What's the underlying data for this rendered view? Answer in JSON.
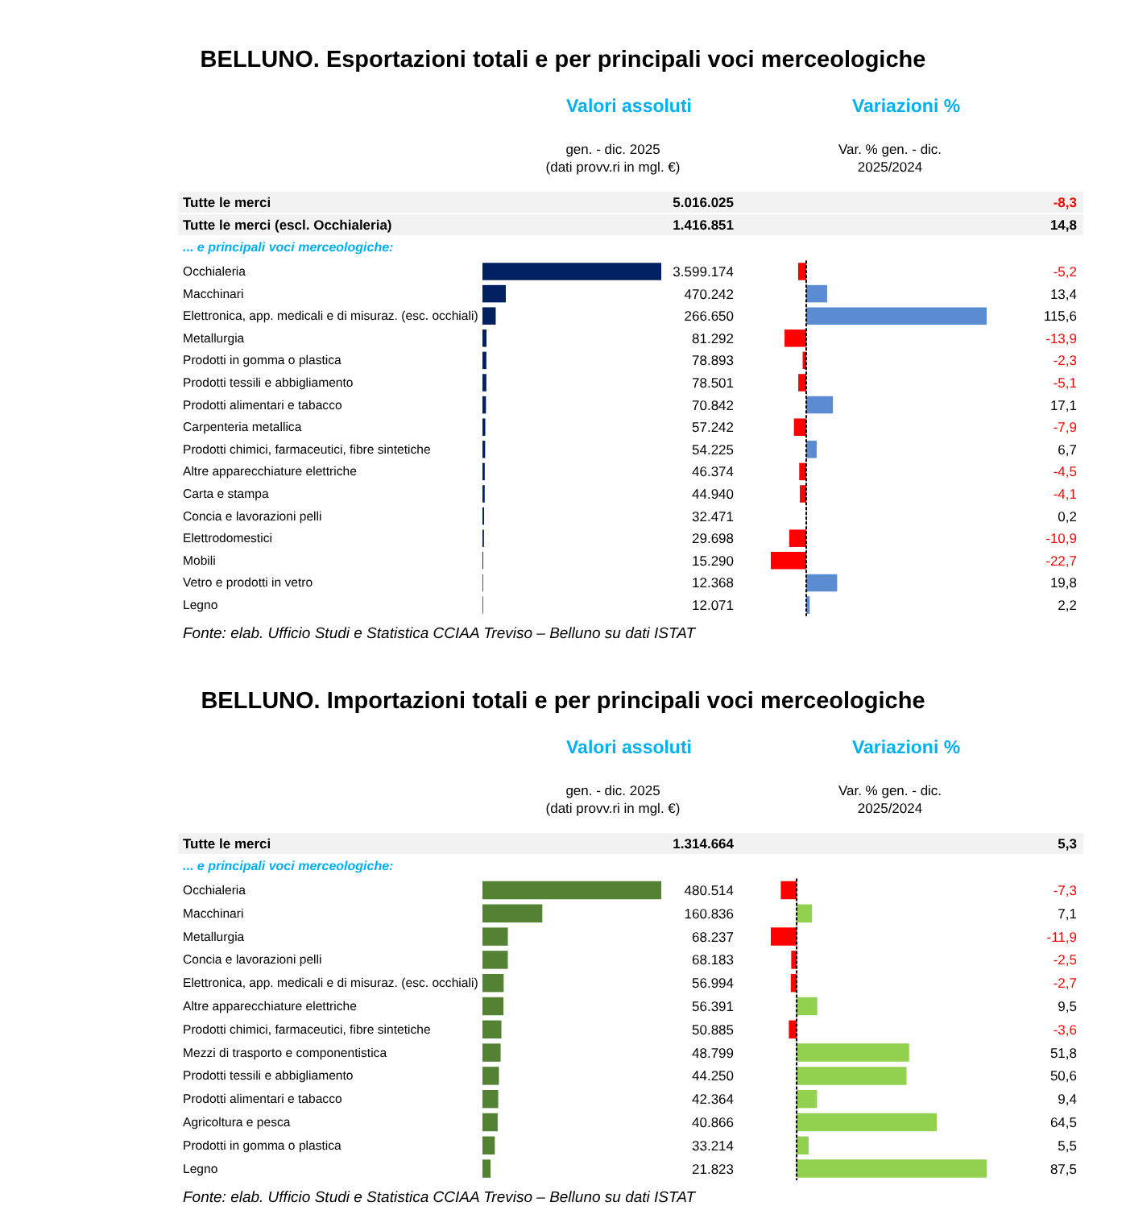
{
  "chart_data": [
    {
      "type": "bar",
      "orientation": "horizontal",
      "title": "BELLUNO. Esportazioni totali e per principali voci merceologiche",
      "subtitle": "Valori assoluti",
      "categories": [
        "Occhialeria",
        "Macchinari",
        "Elettronica, app. medicali e di misuraz. (esc. occhiali)",
        "Metallurgia",
        "Prodotti in gomma o plastica",
        "Prodotti tessili e abbigliamento",
        "Prodotti alimentari e tabacco",
        "Carpenteria metallica",
        "Prodotti chimici, farmaceutici, fibre sintetiche",
        "Altre apparecchiature elettriche",
        "Carta e stampa",
        "Concia e lavorazioni pelli",
        "Elettrodomestici",
        "Mobili",
        "Vetro e prodotti in vetro",
        "Legno"
      ],
      "values": [
        3599174,
        470242,
        266650,
        81292,
        78893,
        78501,
        70842,
        57242,
        54225,
        46374,
        44940,
        32471,
        29698,
        15290,
        12368,
        12071
      ],
      "value_labels": [
        "3.599.174",
        "470.242",
        "266.650",
        "81.292",
        "78.893",
        "78.501",
        "70.842",
        "57.242",
        "54.225",
        "46.374",
        "44.940",
        "32.471",
        "29.698",
        "15.290",
        "12.368",
        "12.071"
      ],
      "color": "#002060",
      "tick_labels": "y",
      "annotations": [
        "gen. - dic. 2025",
        "(dati provv.ri in mgl. €)",
        "Tutte le merci",
        "5.016.025",
        "Tutte le merci (escl. Occhialeria)",
        "1.416.851",
        "... e principali voci merceologiche:",
        "Fonte: elab. Ufficio Studi e Statistica CCIAA Treviso – Belluno su dati ISTAT"
      ]
    },
    {
      "type": "bar",
      "orientation": "horizontal",
      "subtitle": "Variazioni %",
      "categories": [
        null,
        null,
        null,
        null,
        null,
        null,
        null,
        null,
        null,
        null,
        null,
        null,
        null,
        null,
        null,
        null
      ],
      "values": [
        -5.2,
        13.4,
        115.6,
        -13.9,
        -2.3,
        -5.1,
        17.1,
        -7.9,
        6.7,
        -4.5,
        -4.1,
        0.2,
        -10.9,
        -22.7,
        19.8,
        2.2
      ],
      "value_labels": [
        "-5,2",
        "13,4",
        "115,6",
        "-13,9",
        "-2,3",
        "-5,1",
        "17,1",
        "-7,9",
        "6,7",
        "-4,5",
        "-4,1",
        "0,2",
        "-10,9",
        "-22,7",
        "19,8",
        "2,2"
      ],
      "colors": [
        "#ff0000",
        "#5b8bd0",
        "#5b8bd0",
        "#ff0000",
        "#ff0000",
        "#ff0000",
        "#5b8bd0",
        "#ff0000",
        "#5b8bd0",
        "#ff0000",
        "#ff0000",
        "#5b8bd0",
        "#ff0000",
        "#ff0000",
        "#5b8bd0",
        "#5b8bd0"
      ],
      "tick_labels": false,
      "ref_lines": [
        {
          "axis": "x",
          "value": 0,
          "line_style": "dashed",
          "color": "#000000"
        }
      ],
      "annotations": [
        "Var. % gen. - dic.",
        "2025/2024",
        "-8,3",
        "14,8"
      ]
    },
    {
      "type": "bar",
      "orientation": "horizontal",
      "title": "BELLUNO. Importazioni totali e per principali voci merceologiche",
      "subtitle": "Valori assoluti",
      "categories": [
        "Occhialeria",
        "Macchinari",
        "Metallurgia",
        "Concia e lavorazioni pelli",
        "Elettronica, app. medicali e di misuraz. (esc. occhiali)",
        "Altre apparecchiature elettriche",
        "Prodotti chimici, farmaceutici, fibre sintetiche",
        "Mezzi di trasporto e componentistica",
        "Prodotti tessili e abbigliamento",
        "Prodotti alimentari e tabacco",
        "Agricoltura e pesca",
        "Prodotti in gomma o plastica",
        "Legno"
      ],
      "values": [
        480514,
        160836,
        68237,
        68183,
        56994,
        56391,
        50885,
        48799,
        44250,
        42364,
        40866,
        33214,
        21823
      ],
      "value_labels": [
        "480.514",
        "160.836",
        "68.237",
        "68.183",
        "56.994",
        "56.391",
        "50.885",
        "48.799",
        "44.250",
        "42.364",
        "40.866",
        "33.214",
        "21.823"
      ],
      "color": "#548235",
      "tick_labels": "y",
      "annotations": [
        "gen. - dic. 2025",
        "(dati provv.ri in mgl. €)",
        "Tutte le merci",
        "1.314.664",
        "... e principali voci merceologiche:",
        "Fonte: elab. Ufficio Studi e Statistica CCIAA Treviso – Belluno su dati ISTAT"
      ]
    },
    {
      "type": "bar",
      "orientation": "horizontal",
      "subtitle": "Variazioni %",
      "categories": [
        null,
        null,
        null,
        null,
        null,
        null,
        null,
        null,
        null,
        null,
        null,
        null,
        null
      ],
      "values": [
        -7.3,
        7.1,
        -11.9,
        -2.5,
        -2.7,
        9.5,
        -3.6,
        51.8,
        50.6,
        9.4,
        64.5,
        5.5,
        87.5
      ],
      "value_labels": [
        "-7,3",
        "7,1",
        "-11,9",
        "-2,5",
        "-2,7",
        "9,5",
        "-3,6",
        "51,8",
        "50,6",
        "9,4",
        "64,5",
        "5,5",
        "87,5"
      ],
      "colors": [
        "#ff0000",
        "#92d050",
        "#ff0000",
        "#ff0000",
        "#ff0000",
        "#92d050",
        "#ff0000",
        "#92d050",
        "#92d050",
        "#92d050",
        "#92d050",
        "#92d050",
        "#92d050"
      ],
      "tick_labels": false,
      "ref_lines": [
        {
          "axis": "x",
          "value": 0,
          "line_style": "dashed",
          "color": "#000000"
        }
      ],
      "annotations": [
        "Var. % gen. - dic.",
        "2025/2024",
        "5,3"
      ]
    }
  ]
}
